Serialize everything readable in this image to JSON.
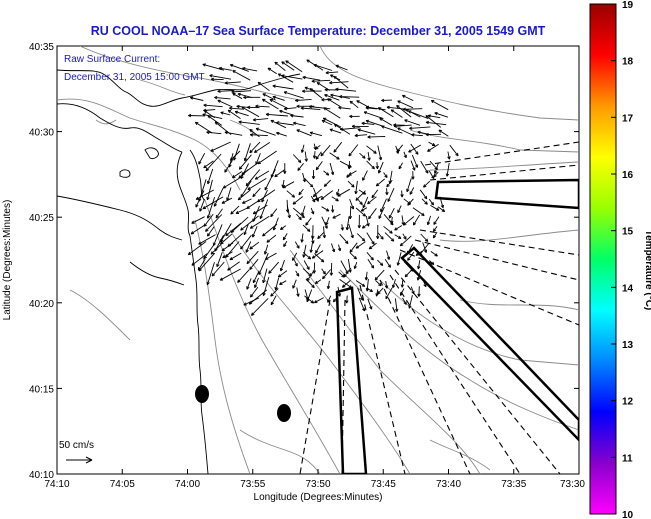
{
  "title": "RU COOL  NOAA–17  Sea Surface Temperature:  December 31, 2005 1549 GMT",
  "legend": {
    "line1": "Raw Surface Current:",
    "line2": "December 31, 2005 15:00 GMT",
    "scale_label": "50 cm/s"
  },
  "map": {
    "x_axis_label": "Longitude (Degrees:Minutes)",
    "y_axis_label": "Latitude (Degrees:Minutes)",
    "x_ticks": [
      "74:10",
      "74:05",
      "74:00",
      "73:55",
      "73:50",
      "73:45",
      "73:40",
      "73:35",
      "73:30"
    ],
    "y_ticks": [
      "40:35",
      "40:30",
      "40:25",
      "40:20",
      "40:15",
      "40:10"
    ],
    "lon_range": [
      -74.1667,
      -73.5
    ],
    "lat_range": [
      40.1667,
      40.5833
    ]
  },
  "colorbar": {
    "label": "Temperature (°C)",
    "min": 10,
    "max": 19,
    "ticks": [
      "19",
      "18",
      "17",
      "16",
      "15",
      "14",
      "13",
      "12",
      "11",
      "10"
    ],
    "colors": [
      "#ff00ff",
      "#8800cc",
      "#0000ff",
      "#0088ff",
      "#00ffff",
      "#00ff66",
      "#99ff00",
      "#ffff00",
      "#ff9900",
      "#ff0000",
      "#990000"
    ]
  },
  "markers": {
    "dot_color": "#000000"
  }
}
